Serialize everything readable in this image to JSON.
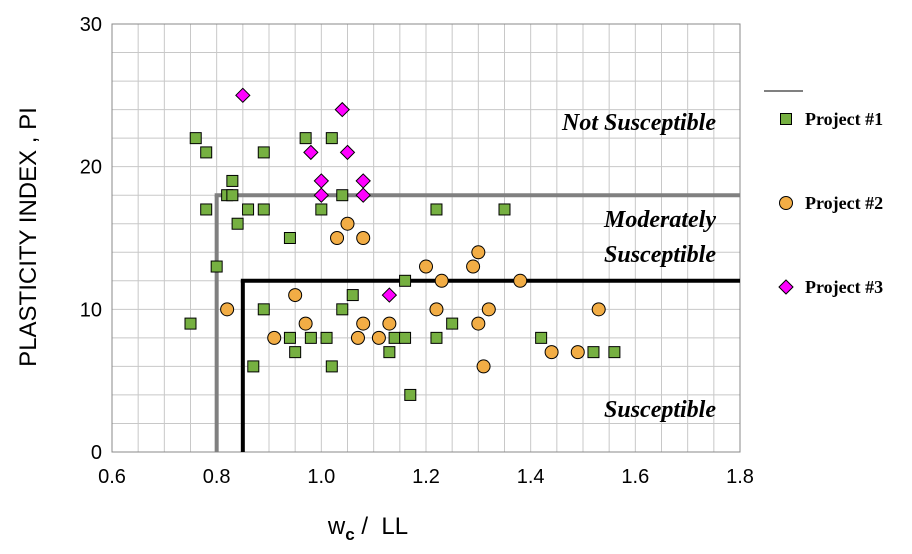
{
  "chart_data": {
    "type": "scatter",
    "xlabel": "wc / LL",
    "xlabel_main": "w",
    "xlabel_sub": "c",
    "xlabel_rest": " /  LL",
    "ylabel": "PLASTICITY INDEX , PI",
    "xlim": [
      0.6,
      1.8
    ],
    "ylim": [
      0,
      30
    ],
    "xticks": [
      "0.6",
      "0.8",
      "1.0",
      "1.2",
      "1.4",
      "1.6",
      "1.8"
    ],
    "yticks": [
      "0",
      "10",
      "20",
      "30"
    ],
    "grid": true,
    "legend_position": "right",
    "annotations": [
      "Not Susceptible",
      "Moderately",
      "Susceptible",
      "Susceptible"
    ],
    "boundaries": [
      {
        "name": "gray",
        "color": "#808080",
        "x": 0.8,
        "y": 18
      },
      {
        "name": "black",
        "color": "#000000",
        "x": 0.85,
        "y": 12
      }
    ],
    "series": [
      {
        "name": "Project #1",
        "marker": "square",
        "color": "#76b041",
        "points": [
          [
            0.75,
            9
          ],
          [
            0.76,
            22
          ],
          [
            0.78,
            21
          ],
          [
            0.78,
            17
          ],
          [
            0.8,
            13
          ],
          [
            0.82,
            18
          ],
          [
            0.83,
            19
          ],
          [
            0.83,
            18
          ],
          [
            0.84,
            16
          ],
          [
            0.86,
            17
          ],
          [
            0.89,
            17
          ],
          [
            0.89,
            21
          ],
          [
            0.87,
            6
          ],
          [
            0.89,
            10
          ],
          [
            0.94,
            15
          ],
          [
            0.94,
            8
          ],
          [
            0.95,
            7
          ],
          [
            0.97,
            22
          ],
          [
            0.98,
            8
          ],
          [
            1.0,
            17
          ],
          [
            1.01,
            8
          ],
          [
            1.02,
            22
          ],
          [
            1.02,
            6
          ],
          [
            1.04,
            18
          ],
          [
            1.04,
            10
          ],
          [
            1.06,
            11
          ],
          [
            1.13,
            7
          ],
          [
            1.14,
            8
          ],
          [
            1.16,
            12
          ],
          [
            1.16,
            8
          ],
          [
            1.17,
            4
          ],
          [
            1.22,
            17
          ],
          [
            1.22,
            8
          ],
          [
            1.25,
            9
          ],
          [
            1.35,
            17
          ],
          [
            1.42,
            8
          ],
          [
            1.52,
            7
          ],
          [
            1.56,
            7
          ]
        ]
      },
      {
        "name": "Project #2",
        "marker": "circle",
        "color": "#f2ad45",
        "points": [
          [
            0.82,
            10
          ],
          [
            0.91,
            8
          ],
          [
            0.95,
            11
          ],
          [
            0.97,
            9
          ],
          [
            1.03,
            15
          ],
          [
            1.05,
            16
          ],
          [
            1.07,
            8
          ],
          [
            1.08,
            9
          ],
          [
            1.08,
            15
          ],
          [
            1.11,
            8
          ],
          [
            1.13,
            9
          ],
          [
            1.2,
            13
          ],
          [
            1.22,
            10
          ],
          [
            1.23,
            12
          ],
          [
            1.29,
            13
          ],
          [
            1.3,
            9
          ],
          [
            1.3,
            14
          ],
          [
            1.31,
            6
          ],
          [
            1.32,
            10
          ],
          [
            1.38,
            12
          ],
          [
            1.44,
            7
          ],
          [
            1.49,
            7
          ],
          [
            1.53,
            10
          ]
        ]
      },
      {
        "name": "Project #3",
        "marker": "diamond",
        "color": "#ff00ff",
        "points": [
          [
            0.85,
            25
          ],
          [
            0.98,
            21
          ],
          [
            1.0,
            19
          ],
          [
            1.0,
            18
          ],
          [
            1.04,
            24
          ],
          [
            1.05,
            21
          ],
          [
            1.08,
            19
          ],
          [
            1.08,
            18
          ],
          [
            1.13,
            11
          ]
        ]
      }
    ]
  }
}
